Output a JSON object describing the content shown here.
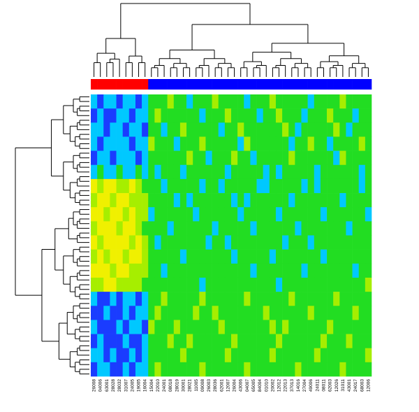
{
  "chart_data": {
    "type": "heatmap",
    "categories": [
      "26008",
      "04006",
      "63001",
      "28028",
      "28032",
      "31007",
      "24005",
      "19005",
      "16004",
      "15004",
      "22010",
      "24001",
      "08018",
      "28019",
      "30001",
      "28021",
      "11005",
      "09008",
      "26003",
      "28036",
      "62001",
      "12007",
      "26004",
      "43006",
      "04007",
      "65005",
      "84004",
      "01010",
      "20002",
      "12012",
      "22013",
      "37013",
      "14016",
      "27004",
      "49006",
      "24011",
      "08011",
      "62003",
      "12026",
      "31011",
      "43001",
      "24017",
      "68003",
      "12006"
    ],
    "column_groups": [
      0,
      0,
      0,
      0,
      0,
      0,
      0,
      0,
      0,
      1,
      1,
      1,
      1,
      1,
      1,
      1,
      1,
      1,
      1,
      1,
      1,
      1,
      1,
      1,
      1,
      1,
      1,
      1,
      1,
      1,
      1,
      1,
      1,
      1,
      1,
      1,
      1,
      1,
      1,
      1,
      1,
      1,
      1,
      1
    ],
    "group_colors": [
      "#ff0000",
      "#0000ff"
    ],
    "palette": [
      "#1a3cff",
      "#00c8ff",
      "#22dd22",
      "#a6ee00",
      "#f0f000"
    ],
    "matrix": [
      [
        1,
        0,
        1,
        1,
        0,
        1,
        1,
        0,
        1,
        2,
        2,
        2,
        3,
        2,
        2,
        1,
        2,
        2,
        2,
        3,
        2,
        2,
        2,
        2,
        1,
        2,
        2,
        2,
        3,
        2,
        2,
        2,
        2,
        2,
        1,
        2,
        2,
        2,
        2,
        3,
        2,
        2,
        2,
        2
      ],
      [
        0,
        1,
        0,
        0,
        1,
        1,
        0,
        1,
        1,
        2,
        3,
        2,
        2,
        2,
        2,
        2,
        2,
        1,
        2,
        2,
        2,
        3,
        2,
        2,
        2,
        2,
        1,
        2,
        2,
        3,
        2,
        2,
        2,
        1,
        2,
        2,
        2,
        3,
        2,
        2,
        2,
        1,
        2,
        2
      ],
      [
        1,
        1,
        0,
        1,
        1,
        0,
        1,
        1,
        0,
        2,
        2,
        1,
        2,
        2,
        3,
        2,
        2,
        2,
        2,
        2,
        1,
        2,
        2,
        3,
        2,
        2,
        2,
        2,
        2,
        2,
        3,
        2,
        1,
        2,
        2,
        2,
        2,
        2,
        3,
        2,
        1,
        2,
        2,
        2
      ],
      [
        1,
        0,
        1,
        1,
        1,
        1,
        0,
        1,
        1,
        3,
        2,
        2,
        2,
        1,
        2,
        2,
        2,
        3,
        2,
        2,
        2,
        2,
        2,
        1,
        3,
        2,
        2,
        2,
        2,
        2,
        2,
        1,
        2,
        2,
        3,
        2,
        2,
        1,
        2,
        2,
        2,
        2,
        3,
        2
      ],
      [
        0,
        1,
        1,
        0,
        1,
        1,
        1,
        0,
        1,
        2,
        2,
        2,
        2,
        2,
        2,
        3,
        2,
        2,
        1,
        2,
        2,
        2,
        3,
        2,
        2,
        1,
        2,
        2,
        2,
        2,
        2,
        3,
        2,
        2,
        2,
        2,
        2,
        2,
        1,
        3,
        2,
        2,
        2,
        2
      ],
      [
        1,
        2,
        1,
        1,
        2,
        1,
        1,
        2,
        1,
        2,
        1,
        2,
        2,
        2,
        1,
        2,
        2,
        2,
        2,
        2,
        2,
        1,
        2,
        2,
        2,
        2,
        2,
        1,
        2,
        1,
        2,
        2,
        2,
        2,
        2,
        1,
        2,
        2,
        2,
        2,
        2,
        2,
        1,
        2
      ],
      [
        4,
        3,
        4,
        4,
        3,
        3,
        4,
        3,
        2,
        2,
        2,
        1,
        2,
        2,
        2,
        2,
        2,
        1,
        2,
        2,
        1,
        2,
        2,
        2,
        2,
        2,
        1,
        1,
        2,
        2,
        2,
        2,
        2,
        1,
        2,
        1,
        2,
        2,
        2,
        2,
        2,
        2,
        1,
        2
      ],
      [
        3,
        4,
        4,
        3,
        4,
        4,
        3,
        3,
        3,
        2,
        2,
        2,
        2,
        1,
        2,
        1,
        2,
        2,
        2,
        2,
        2,
        2,
        1,
        2,
        1,
        2,
        2,
        2,
        2,
        2,
        2,
        1,
        2,
        2,
        2,
        2,
        2,
        2,
        2,
        1,
        2,
        2,
        2,
        2
      ],
      [
        4,
        4,
        3,
        4,
        4,
        3,
        4,
        3,
        3,
        1,
        2,
        2,
        2,
        2,
        2,
        2,
        1,
        2,
        2,
        2,
        2,
        2,
        2,
        1,
        2,
        2,
        2,
        2,
        2,
        1,
        2,
        2,
        2,
        2,
        2,
        2,
        1,
        2,
        2,
        2,
        2,
        2,
        2,
        1
      ],
      [
        3,
        4,
        4,
        4,
        3,
        4,
        4,
        3,
        2,
        2,
        2,
        2,
        1,
        2,
        2,
        2,
        2,
        2,
        2,
        1,
        2,
        2,
        2,
        2,
        2,
        1,
        2,
        2,
        2,
        2,
        2,
        2,
        1,
        2,
        2,
        2,
        2,
        2,
        2,
        2,
        1,
        2,
        2,
        2
      ],
      [
        4,
        3,
        4,
        4,
        4,
        4,
        3,
        4,
        3,
        2,
        1,
        2,
        2,
        2,
        2,
        2,
        2,
        2,
        1,
        2,
        2,
        1,
        2,
        2,
        2,
        2,
        2,
        2,
        2,
        2,
        1,
        2,
        2,
        2,
        1,
        2,
        2,
        2,
        2,
        2,
        2,
        2,
        2,
        2
      ],
      [
        3,
        4,
        3,
        4,
        4,
        3,
        4,
        4,
        3,
        2,
        2,
        2,
        2,
        2,
        1,
        2,
        2,
        2,
        2,
        2,
        2,
        2,
        1,
        2,
        2,
        2,
        2,
        2,
        1,
        2,
        2,
        2,
        2,
        2,
        2,
        2,
        1,
        2,
        2,
        2,
        2,
        2,
        2,
        2
      ],
      [
        4,
        4,
        4,
        3,
        4,
        4,
        3,
        3,
        3,
        2,
        2,
        1,
        2,
        2,
        2,
        2,
        2,
        2,
        2,
        2,
        2,
        2,
        2,
        2,
        2,
        1,
        2,
        2,
        2,
        2,
        2,
        2,
        2,
        1,
        2,
        2,
        2,
        2,
        2,
        2,
        2,
        1,
        2,
        2
      ],
      [
        3,
        3,
        4,
        4,
        3,
        3,
        3,
        3,
        2,
        2,
        2,
        2,
        2,
        2,
        2,
        2,
        2,
        1,
        2,
        2,
        2,
        2,
        2,
        2,
        2,
        2,
        2,
        2,
        2,
        1,
        2,
        2,
        2,
        2,
        2,
        2,
        2,
        2,
        2,
        2,
        2,
        2,
        2,
        3
      ],
      [
        1,
        0,
        0,
        1,
        0,
        1,
        1,
        0,
        1,
        2,
        2,
        3,
        2,
        2,
        2,
        2,
        2,
        3,
        2,
        2,
        2,
        2,
        2,
        2,
        3,
        2,
        2,
        2,
        2,
        2,
        2,
        3,
        2,
        2,
        2,
        2,
        2,
        2,
        3,
        2,
        2,
        2,
        2,
        2
      ],
      [
        0,
        0,
        1,
        0,
        0,
        1,
        0,
        1,
        1,
        2,
        3,
        2,
        2,
        2,
        2,
        2,
        3,
        2,
        2,
        3,
        2,
        2,
        2,
        2,
        2,
        2,
        2,
        3,
        2,
        2,
        2,
        2,
        2,
        2,
        3,
        2,
        2,
        2,
        2,
        2,
        2,
        3,
        2,
        2
      ],
      [
        1,
        0,
        0,
        0,
        1,
        0,
        1,
        1,
        0,
        3,
        2,
        2,
        2,
        3,
        2,
        2,
        2,
        2,
        2,
        2,
        3,
        2,
        2,
        2,
        2,
        2,
        2,
        2,
        3,
        2,
        3,
        2,
        2,
        2,
        2,
        2,
        2,
        3,
        2,
        2,
        2,
        2,
        2,
        2
      ],
      [
        0,
        1,
        0,
        0,
        0,
        1,
        0,
        0,
        1,
        2,
        2,
        2,
        3,
        2,
        2,
        3,
        2,
        2,
        2,
        2,
        2,
        2,
        3,
        2,
        2,
        2,
        2,
        2,
        2,
        3,
        2,
        2,
        2,
        2,
        2,
        2,
        3,
        2,
        2,
        2,
        3,
        2,
        2,
        2
      ],
      [
        1,
        1,
        0,
        1,
        0,
        0,
        1,
        0,
        1,
        2,
        2,
        2,
        2,
        2,
        3,
        2,
        2,
        2,
        2,
        2,
        2,
        3,
        2,
        2,
        2,
        2,
        2,
        2,
        3,
        2,
        2,
        2,
        2,
        2,
        2,
        3,
        2,
        2,
        2,
        2,
        2,
        2,
        2,
        3
      ],
      [
        0,
        1,
        1,
        0,
        0,
        1,
        0,
        1,
        1,
        2,
        3,
        2,
        2,
        2,
        2,
        2,
        2,
        3,
        2,
        2,
        2,
        2,
        2,
        2,
        3,
        2,
        2,
        2,
        2,
        2,
        2,
        2,
        3,
        2,
        2,
        2,
        2,
        2,
        2,
        3,
        2,
        2,
        2,
        2
      ]
    ]
  }
}
